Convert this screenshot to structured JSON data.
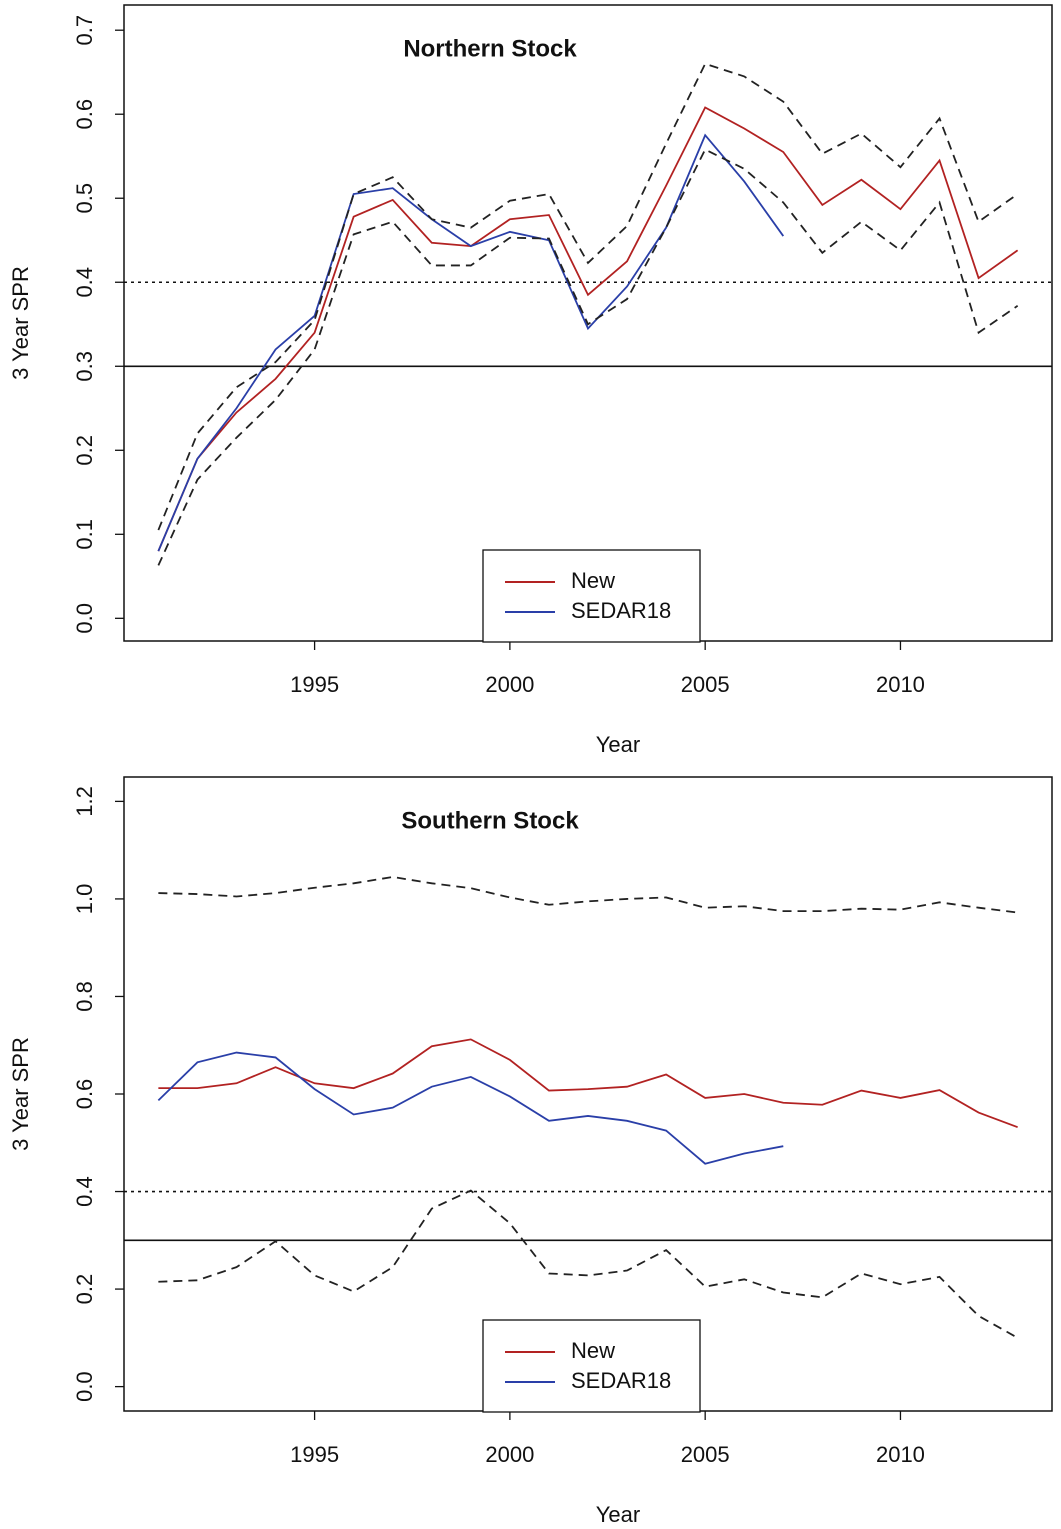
{
  "chart_data": [
    {
      "type": "line",
      "title": "Northern Stock",
      "xlabel": "Year",
      "ylabel": "3 Year SPR",
      "x": [
        1991,
        1992,
        1993,
        1994,
        1995,
        1996,
        1997,
        1998,
        1999,
        2000,
        2001,
        2002,
        2003,
        2004,
        2005,
        2006,
        2007,
        2008,
        2009,
        2010,
        2011,
        2012,
        2013
      ],
      "series": [
        {
          "name": "New",
          "color": "#b22222",
          "style": "solid",
          "values": [
            0.08,
            0.19,
            0.245,
            0.285,
            0.34,
            0.478,
            0.498,
            0.447,
            0.443,
            0.475,
            0.48,
            0.385,
            0.425,
            0.515,
            0.608,
            0.583,
            0.555,
            0.492,
            0.522,
            0.487,
            0.545,
            0.405,
            0.438
          ]
        },
        {
          "name": "SEDAR18",
          "color": "#2a3fa8",
          "style": "solid",
          "values": [
            0.08,
            0.19,
            0.25,
            0.32,
            0.36,
            0.505,
            0.512,
            0.475,
            0.443,
            0.46,
            0.45,
            0.345,
            0.395,
            0.465,
            0.575,
            0.52,
            0.455,
            null,
            null,
            null,
            null,
            null,
            null
          ]
        },
        {
          "color": "#222222",
          "style": "dashed",
          "values": [
            0.105,
            0.22,
            0.275,
            0.305,
            0.355,
            0.505,
            0.525,
            0.475,
            0.465,
            0.497,
            0.505,
            0.423,
            0.467,
            0.565,
            0.66,
            0.645,
            0.615,
            0.553,
            0.577,
            0.537,
            0.595,
            0.472,
            0.505
          ]
        },
        {
          "color": "#222222",
          "style": "dashed",
          "values": [
            0.063,
            0.165,
            0.215,
            0.26,
            0.32,
            0.457,
            0.472,
            0.42,
            0.42,
            0.453,
            0.452,
            0.35,
            0.38,
            0.465,
            0.558,
            0.535,
            0.495,
            0.435,
            0.472,
            0.438,
            0.495,
            0.34,
            0.372
          ]
        }
      ],
      "hlines": [
        {
          "value": 0.4,
          "style": "dotted"
        },
        {
          "value": 0.3,
          "style": "solid"
        }
      ],
      "xlim": [
        1990.12,
        2013.88
      ],
      "xticks": [
        1995,
        2000,
        2005,
        2010
      ],
      "ylim": [
        -0.027,
        0.73
      ],
      "yticks": [
        {
          "value": 0,
          "label": "0.0"
        },
        0.1,
        0.2,
        0.3,
        0.4,
        0.5,
        0.6,
        0.7
      ],
      "legend": "bottom"
    },
    {
      "type": "line",
      "title": "Southern Stock",
      "xlabel": "Year",
      "ylabel": "3 Year SPR",
      "x": [
        1991,
        1992,
        1993,
        1994,
        1995,
        1996,
        1997,
        1998,
        1999,
        2000,
        2001,
        2002,
        2003,
        2004,
        2005,
        2006,
        2007,
        2008,
        2009,
        2010,
        2011,
        2012,
        2013
      ],
      "series": [
        {
          "name": "New",
          "color": "#b22222",
          "style": "solid",
          "values": [
            0.612,
            0.612,
            0.622,
            0.655,
            0.622,
            0.612,
            0.642,
            0.698,
            0.712,
            0.67,
            0.607,
            0.61,
            0.615,
            0.64,
            0.592,
            0.6,
            0.582,
            0.578,
            0.607,
            0.592,
            0.608,
            0.562,
            0.532
          ]
        },
        {
          "name": "SEDAR18",
          "color": "#2a3fa8",
          "style": "solid",
          "values": [
            0.587,
            0.665,
            0.685,
            0.675,
            0.61,
            0.558,
            0.572,
            0.615,
            0.635,
            0.595,
            0.545,
            0.555,
            0.545,
            0.525,
            0.457,
            0.478,
            0.493,
            null,
            null,
            null,
            null,
            null,
            null
          ]
        },
        {
          "color": "#222222",
          "style": "dashed",
          "values": [
            1.012,
            1.01,
            1.005,
            1.012,
            1.023,
            1.032,
            1.045,
            1.032,
            1.022,
            1.003,
            0.988,
            0.995,
            1.0,
            1.003,
            0.982,
            0.985,
            0.975,
            0.975,
            0.98,
            0.978,
            0.993,
            0.982,
            0.972
          ]
        },
        {
          "color": "#222222",
          "style": "dashed",
          "values": [
            0.215,
            0.218,
            0.245,
            0.298,
            0.228,
            0.195,
            0.245,
            0.365,
            0.402,
            0.335,
            0.232,
            0.228,
            0.238,
            0.28,
            0.205,
            0.22,
            0.193,
            0.183,
            0.232,
            0.21,
            0.225,
            0.145,
            0.1
          ]
        }
      ],
      "hlines": [
        {
          "value": 0.4,
          "style": "dotted"
        },
        {
          "value": 0.3,
          "style": "solid"
        }
      ],
      "xlim": [
        1990.12,
        2013.88
      ],
      "xticks": [
        1995,
        2000,
        2005,
        2010
      ],
      "ylim": [
        -0.05,
        1.25
      ],
      "yticks": [
        {
          "value": 0,
          "label": "0.0"
        },
        0.2,
        0.4,
        0.6,
        0.8,
        {
          "value": 1,
          "label": "1.0"
        },
        1.2
      ],
      "legend": "bottom"
    }
  ]
}
